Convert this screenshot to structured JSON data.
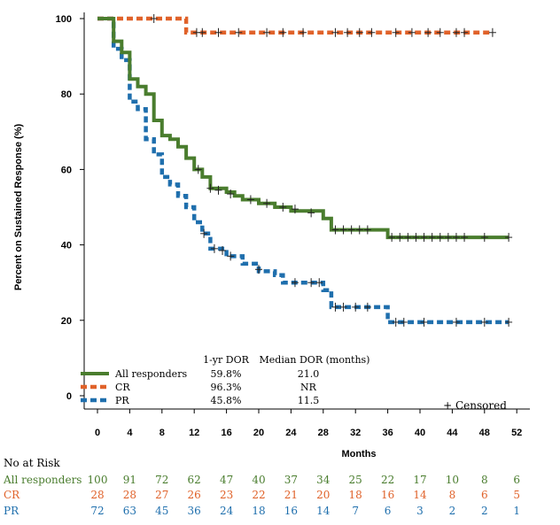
{
  "chart_data": {
    "type": "line",
    "subtype": "kaplan-meier step",
    "ylabel": "Percent on Sustained Response (%)",
    "xlabel": "Months",
    "xlim": [
      -2,
      53
    ],
    "ylim": [
      -2,
      102
    ],
    "x_ticks": [
      0,
      4,
      8,
      12,
      16,
      20,
      24,
      28,
      32,
      36,
      40,
      44,
      48,
      52
    ],
    "y_ticks": [
      0,
      20,
      40,
      60,
      80,
      100
    ],
    "series": [
      {
        "name": "All responders",
        "color": "#4a7d2e",
        "style": "solid",
        "one_yr_dor": "59.8%",
        "median_dor": "21.0",
        "steps": [
          [
            0,
            100
          ],
          [
            2,
            100
          ],
          [
            2,
            94
          ],
          [
            3,
            94
          ],
          [
            3,
            91
          ],
          [
            4,
            91
          ],
          [
            4,
            84
          ],
          [
            5,
            84
          ],
          [
            5,
            82
          ],
          [
            6,
            82
          ],
          [
            6,
            80
          ],
          [
            7,
            80
          ],
          [
            7,
            73
          ],
          [
            8,
            73
          ],
          [
            8,
            69
          ],
          [
            9,
            69
          ],
          [
            9,
            68
          ],
          [
            10,
            68
          ],
          [
            10,
            66
          ],
          [
            11,
            66
          ],
          [
            11,
            63
          ],
          [
            12,
            63
          ],
          [
            12,
            60
          ],
          [
            13,
            60
          ],
          [
            13,
            58
          ],
          [
            14,
            58
          ],
          [
            14,
            55
          ],
          [
            16,
            55
          ],
          [
            16,
            54
          ],
          [
            17,
            54
          ],
          [
            17,
            53
          ],
          [
            18,
            53
          ],
          [
            18,
            52
          ],
          [
            20,
            52
          ],
          [
            20,
            51
          ],
          [
            22,
            51
          ],
          [
            22,
            50
          ],
          [
            24,
            50
          ],
          [
            24,
            49
          ],
          [
            28,
            49
          ],
          [
            28,
            47
          ],
          [
            29,
            47
          ],
          [
            29,
            44
          ],
          [
            36,
            44
          ],
          [
            36,
            42
          ],
          [
            51,
            42
          ]
        ],
        "censored": [
          [
            12.5,
            60
          ],
          [
            14,
            55
          ],
          [
            15,
            54.5
          ],
          [
            16.5,
            53.5
          ],
          [
            19,
            52
          ],
          [
            21,
            51
          ],
          [
            23,
            50
          ],
          [
            24.5,
            49.5
          ],
          [
            26.5,
            48.5
          ],
          [
            29.5,
            44
          ],
          [
            30.5,
            44
          ],
          [
            31.5,
            44
          ],
          [
            32.5,
            44
          ],
          [
            33.5,
            44
          ],
          [
            36.5,
            42
          ],
          [
            37.5,
            42
          ],
          [
            38.5,
            42
          ],
          [
            39.5,
            42
          ],
          [
            40.5,
            42
          ],
          [
            41.5,
            42
          ],
          [
            42.5,
            42
          ],
          [
            43.5,
            42
          ],
          [
            44.5,
            42
          ],
          [
            45.5,
            42
          ],
          [
            48,
            42
          ],
          [
            51,
            42
          ]
        ],
        "at_risk": [
          100,
          91,
          72,
          62,
          47,
          40,
          37,
          34,
          25,
          22,
          17,
          10,
          8,
          6
        ]
      },
      {
        "name": "CR",
        "color": "#e0622a",
        "style": "dashed",
        "one_yr_dor": "96.3%",
        "median_dor": "NR",
        "steps": [
          [
            0,
            100
          ],
          [
            11,
            100
          ],
          [
            11,
            96.3
          ],
          [
            49,
            96.3
          ]
        ],
        "censored": [
          [
            7,
            100
          ],
          [
            12.3,
            96.3
          ],
          [
            13,
            96.3
          ],
          [
            15,
            96.3
          ],
          [
            17.5,
            96.3
          ],
          [
            21,
            96.3
          ],
          [
            23,
            96.3
          ],
          [
            25.5,
            96.3
          ],
          [
            29.5,
            96.3
          ],
          [
            31,
            96.3
          ],
          [
            32.5,
            96.3
          ],
          [
            34,
            96.3
          ],
          [
            37,
            96.3
          ],
          [
            39,
            96.3
          ],
          [
            41,
            96.3
          ],
          [
            42.5,
            96.3
          ],
          [
            44.5,
            96.3
          ],
          [
            45.5,
            96.3
          ],
          [
            49,
            96.3
          ]
        ],
        "at_risk": [
          28,
          28,
          27,
          26,
          23,
          22,
          21,
          20,
          18,
          16,
          14,
          8,
          6,
          5
        ]
      },
      {
        "name": "PR",
        "color": "#1f6fad",
        "style": "dashed",
        "one_yr_dor": "45.8%",
        "median_dor": "11.5",
        "steps": [
          [
            0,
            100
          ],
          [
            2,
            100
          ],
          [
            2,
            92
          ],
          [
            3,
            92
          ],
          [
            3,
            89
          ],
          [
            4,
            89
          ],
          [
            4,
            78
          ],
          [
            5,
            78
          ],
          [
            5,
            76
          ],
          [
            6,
            76
          ],
          [
            6,
            68
          ],
          [
            7,
            68
          ],
          [
            7,
            64
          ],
          [
            8,
            64
          ],
          [
            8,
            58
          ],
          [
            9,
            58
          ],
          [
            9,
            56
          ],
          [
            10,
            56
          ],
          [
            10,
            53
          ],
          [
            11,
            53
          ],
          [
            11,
            50
          ],
          [
            12,
            50
          ],
          [
            12,
            46
          ],
          [
            13,
            46
          ],
          [
            13,
            43
          ],
          [
            14,
            43
          ],
          [
            14,
            39
          ],
          [
            16,
            39
          ],
          [
            16,
            37
          ],
          [
            18,
            37
          ],
          [
            18,
            35
          ],
          [
            20,
            35
          ],
          [
            20,
            33
          ],
          [
            22,
            33
          ],
          [
            22,
            32
          ],
          [
            23,
            32
          ],
          [
            23,
            30
          ],
          [
            28,
            30
          ],
          [
            28,
            28
          ],
          [
            29,
            28
          ],
          [
            29,
            23.5
          ],
          [
            36,
            23.5
          ],
          [
            36,
            19.5
          ],
          [
            51,
            19.5
          ]
        ],
        "censored": [
          [
            13.2,
            43
          ],
          [
            14.5,
            39
          ],
          [
            15.5,
            38.5
          ],
          [
            16.5,
            37
          ],
          [
            20,
            33.5
          ],
          [
            24.5,
            30
          ],
          [
            26.5,
            30
          ],
          [
            27.5,
            30
          ],
          [
            29.5,
            23.5
          ],
          [
            30.5,
            23.5
          ],
          [
            32,
            23.5
          ],
          [
            33.5,
            23.5
          ],
          [
            37,
            19.5
          ],
          [
            38,
            19.5
          ],
          [
            40.5,
            19.5
          ],
          [
            44.5,
            19.5
          ],
          [
            48,
            19.5
          ],
          [
            51,
            19.5
          ]
        ],
        "at_risk": [
          72,
          63,
          45,
          36,
          24,
          18,
          16,
          14,
          7,
          6,
          3,
          2,
          2,
          1
        ]
      }
    ],
    "legend": {
      "placement": "bottom-left",
      "header_1yr": "1-yr DOR",
      "header_median": "Median DOR (months)",
      "censored_label": "+ Censored"
    },
    "risk_table": {
      "title": "No at Risk"
    }
  }
}
